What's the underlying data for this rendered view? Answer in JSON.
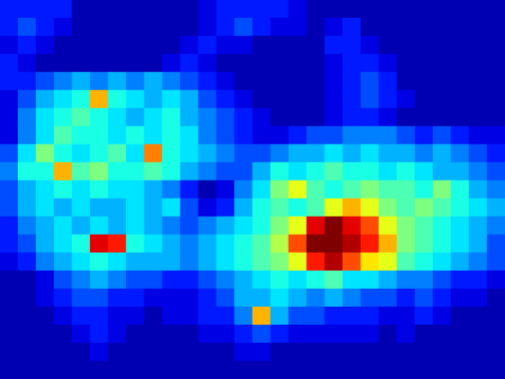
{
  "chart_data": {
    "type": "heatmap",
    "tick_labels": false,
    "color_range": [
      0,
      10
    ],
    "cells": [
      [
        1.5,
        1.5,
        1.5,
        1.5,
        0.5,
        0.5,
        0.5,
        0.5,
        0.5,
        0.5,
        0.5,
        1,
        1.5,
        1.5,
        1.5,
        1.5,
        1,
        0.5,
        0.5,
        0.5,
        0.5,
        0.5,
        0.5,
        0.5,
        0.5,
        0.5,
        0.5,
        0.5
      ],
      [
        1.5,
        2,
        1.5,
        1,
        0.5,
        0.5,
        0.5,
        0.5,
        0.5,
        0.5,
        0.5,
        1,
        1.5,
        2,
        1.5,
        1,
        1,
        0.5,
        1,
        1.5,
        0.5,
        0.5,
        0.5,
        0.5,
        0.5,
        0.5,
        0.5,
        0.5
      ],
      [
        1,
        1.5,
        1,
        0.5,
        0.5,
        0.5,
        0.5,
        0.5,
        0.5,
        0.5,
        1,
        1.5,
        1,
        1,
        0.5,
        0.5,
        0.5,
        0.5,
        1.5,
        1.5,
        1,
        0.5,
        0.5,
        0.5,
        0.5,
        0.5,
        0.5,
        0.5
      ],
      [
        1.5,
        1,
        0.5,
        0.5,
        0.5,
        0.5,
        0.5,
        0.5,
        0.5,
        1,
        1.5,
        1,
        0.5,
        0.5,
        0.5,
        0.5,
        0.5,
        0.5,
        1,
        1.5,
        1.5,
        1,
        0.5,
        0.5,
        0.5,
        0.5,
        0.5,
        0.5
      ],
      [
        1.5,
        1.5,
        2,
        2.5,
        3,
        2.5,
        3,
        2.5,
        3,
        2.5,
        2,
        1.5,
        1,
        0.5,
        0.5,
        0.5,
        0.5,
        0.5,
        1,
        1.5,
        2,
        1.5,
        0.5,
        0.5,
        0.5,
        0.5,
        0.5,
        0.5
      ],
      [
        1,
        2,
        3,
        3.5,
        4,
        7,
        4,
        3.5,
        3,
        3.5,
        3,
        2,
        1.5,
        1,
        0.5,
        0.5,
        0.5,
        0.5,
        1,
        1.5,
        2,
        1.5,
        1,
        0.5,
        0.5,
        0.5,
        0.5,
        0.5
      ],
      [
        1,
        2.5,
        3.5,
        4,
        4.5,
        4,
        3.5,
        3,
        3.5,
        4,
        3,
        2.5,
        2,
        1.5,
        1,
        0.5,
        0.5,
        0.5,
        1,
        1.5,
        1.5,
        1,
        0.5,
        0.5,
        0.5,
        0.5,
        0.5,
        0.5
      ],
      [
        1,
        2.5,
        3.5,
        4.5,
        4,
        4,
        3.5,
        4,
        3.5,
        4,
        3.5,
        2.5,
        2,
        1.5,
        1,
        1,
        1.5,
        2,
        2,
        2.5,
        2.5,
        2.5,
        2,
        1.5,
        2,
        1.5,
        1,
        1
      ],
      [
        2,
        3.5,
        5,
        4,
        3.5,
        4,
        4.5,
        3.5,
        7.5,
        4,
        3.5,
        3,
        2.5,
        2,
        2,
        2.5,
        3,
        3,
        3.5,
        3,
        3.5,
        3,
        3,
        2.5,
        3,
        2.5,
        2,
        1.5
      ],
      [
        2.5,
        4,
        4,
        7,
        4.5,
        5,
        4,
        4,
        4.5,
        4,
        3,
        2.5,
        2,
        2,
        3,
        4,
        3.5,
        4,
        4.5,
        4,
        4,
        3.5,
        4,
        3.5,
        3,
        3,
        2.5,
        2
      ],
      [
        2,
        3,
        3.5,
        4,
        3.5,
        4,
        3.5,
        3.5,
        3,
        2.5,
        1.5,
        0.5,
        1,
        2.5,
        3.5,
        5,
        6,
        4.5,
        4,
        4.5,
        5,
        4.5,
        4.5,
        4,
        5,
        4,
        3,
        2.5
      ],
      [
        2,
        3,
        3.5,
        3,
        3.5,
        3,
        3,
        3.5,
        3,
        3.5,
        2,
        1,
        1.5,
        3,
        4,
        4.5,
        4,
        4.5,
        6,
        7,
        6,
        5,
        4.5,
        5,
        4.5,
        4,
        3.5,
        3
      ],
      [
        1.5,
        2.5,
        3,
        3.5,
        3,
        3.5,
        3,
        3.5,
        3,
        2.5,
        2,
        2.5,
        3,
        3.5,
        4,
        5,
        6,
        9,
        10,
        9,
        8,
        6,
        5,
        4.5,
        4,
        3.5,
        3,
        2.5
      ],
      [
        1.5,
        2,
        3,
        3.5,
        4,
        9,
        8.5,
        4,
        3.5,
        3,
        2.5,
        3,
        3.5,
        4,
        4.5,
        5.5,
        8,
        10,
        10,
        9.5,
        8.5,
        7,
        5,
        4.5,
        4,
        3.5,
        3,
        2
      ],
      [
        1,
        1.5,
        2.5,
        3,
        3.5,
        4,
        3.5,
        3,
        3,
        3,
        2.5,
        3,
        3.5,
        4,
        4.5,
        5,
        6,
        8.5,
        9.5,
        8,
        6.5,
        6,
        4.5,
        4,
        3.5,
        3,
        2.5,
        2
      ],
      [
        0.5,
        0.5,
        1,
        2,
        2.5,
        3,
        2.5,
        2,
        2,
        1.5,
        1.5,
        2,
        2.5,
        3,
        3.5,
        4,
        3.5,
        4,
        4.5,
        3.5,
        3.5,
        3,
        2.5,
        2.5,
        2,
        1.5,
        1.5,
        1
      ],
      [
        0.5,
        0.5,
        1,
        1.5,
        2,
        2,
        1.5,
        1.5,
        1,
        1,
        1,
        1.5,
        2,
        3,
        3,
        3.5,
        3,
        2.5,
        3,
        2.5,
        2,
        2,
        1.5,
        2,
        1.5,
        1,
        1,
        0.5
      ],
      [
        0.5,
        0.5,
        0.5,
        1,
        1.5,
        1.5,
        1,
        1,
        0.5,
        1,
        1,
        1.5,
        1.5,
        2.5,
        7,
        3,
        2,
        2,
        1.5,
        1.5,
        1.5,
        1,
        1,
        1.5,
        1,
        0.5,
        0.5,
        0.5
      ],
      [
        0.5,
        0.5,
        0.5,
        0.5,
        1,
        1.5,
        1,
        0.5,
        0.5,
        0.5,
        0.5,
        1,
        1,
        1.5,
        2,
        1.5,
        1,
        1,
        1,
        1,
        1,
        0.5,
        1,
        0.5,
        0.5,
        0.5,
        0.5,
        0.5
      ],
      [
        0.5,
        0.5,
        0.5,
        0.5,
        0.5,
        1,
        0.5,
        0.5,
        0.5,
        0.5,
        0.5,
        0.5,
        0.5,
        1,
        1,
        0.5,
        0.5,
        0.5,
        0.5,
        0.5,
        0.5,
        0.5,
        0.5,
        0.5,
        0.5,
        0.5,
        0.5,
        0.5
      ],
      [
        0.5,
        0.5,
        0.5,
        0.5,
        0.5,
        0.5,
        0.5,
        0.5,
        0.5,
        0.5,
        0.5,
        0.5,
        0.5,
        0.5,
        0.5,
        0.5,
        0.5,
        0.5,
        0.5,
        0.5,
        0.5,
        0.5,
        0.5,
        0.5,
        0.5,
        0.5,
        0.5,
        0.5
      ]
    ]
  }
}
